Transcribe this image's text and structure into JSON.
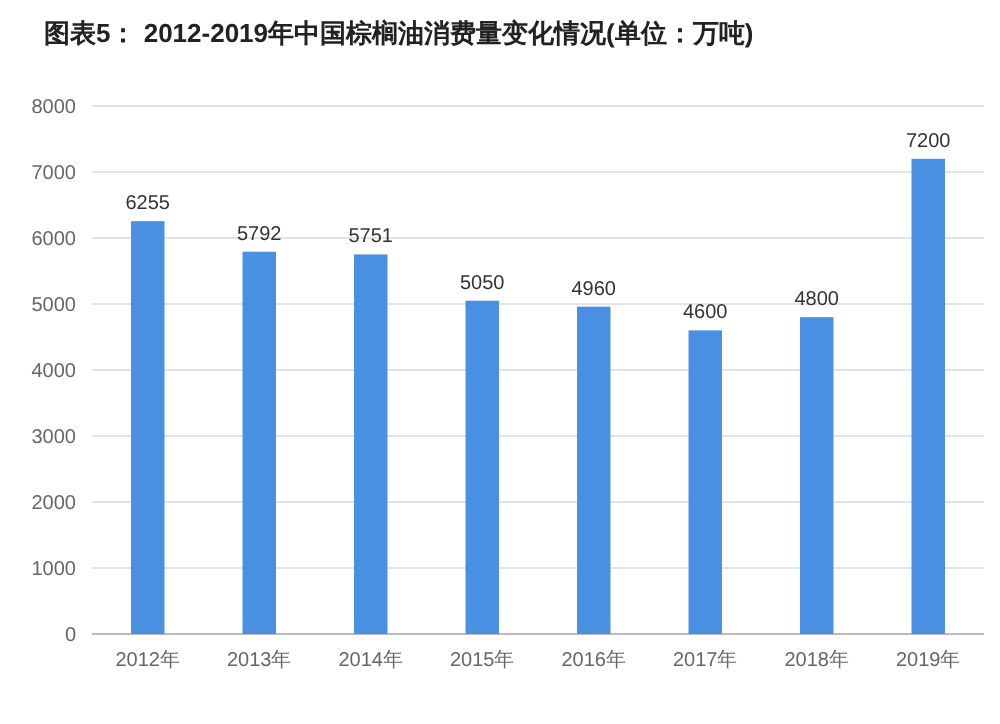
{
  "chart_data": {
    "type": "bar",
    "title": "图表5： 2012-2019年中国棕榈油消费量变化情况(单位：万吨)",
    "categories": [
      "2012年",
      "2013年",
      "2014年",
      "2015年",
      "2016年",
      "2017年",
      "2018年",
      "2019年"
    ],
    "values": [
      6255,
      5792,
      5751,
      5050,
      4960,
      4600,
      4800,
      7200
    ],
    "color": "#4a90e2",
    "ylim": [
      0,
      8000
    ],
    "yticks": [
      0,
      1000,
      2000,
      3000,
      4000,
      5000,
      6000,
      7000,
      8000
    ],
    "grid": "y",
    "data_labels": true
  }
}
